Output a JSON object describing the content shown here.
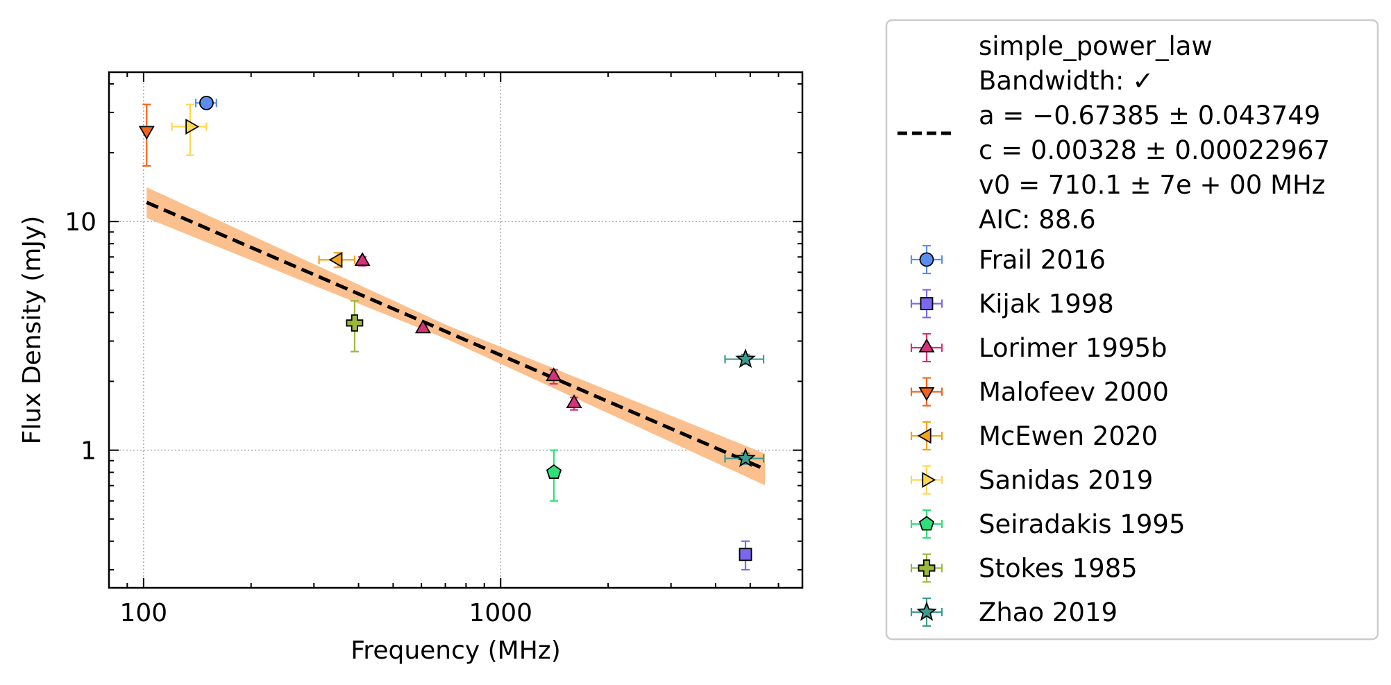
{
  "chart_data": {
    "type": "scatter",
    "xlabel": "Frequency (MHz)",
    "ylabel": "Flux Density (mJy)",
    "x_scale": "log",
    "y_scale": "log",
    "xlim": [
      80,
      7000
    ],
    "ylim": [
      0.25,
      45
    ],
    "x_ticks": [
      {
        "value": 100,
        "label": "100"
      },
      {
        "value": 1000,
        "label": "1000"
      }
    ],
    "y_ticks": [
      {
        "value": 1,
        "label": "1"
      },
      {
        "value": 10,
        "label": "10"
      }
    ],
    "grid": true,
    "legend_placement": "outside-right",
    "fit": {
      "name": "simple_power_law",
      "lines": [
        "simple_power_law",
        "Bandwidth: ✓",
        "a = −0.67385 ± 0.043749",
        "c = 0.00328 ± 0.00022967",
        "v0 = 710.1 ± 7e + 00 MHz",
        "AIC: 88.6"
      ],
      "a": -0.67385,
      "a_err": 0.043749,
      "c": 0.00328,
      "c_err": 0.00022967,
      "v0": 710.1,
      "x_range": [
        102,
        5500
      ],
      "line_color": "#000000",
      "band_color": "#fbc08d"
    },
    "series": [
      {
        "name": "Frail 2016",
        "marker": "circle",
        "color": "#5b8def",
        "edge": "#000000",
        "points": [
          {
            "x": 150,
            "y": 33.0,
            "xerr": 10,
            "yerr": 1.5
          }
        ]
      },
      {
        "name": "Kijak 1998",
        "marker": "square",
        "color": "#7b68ee",
        "edge": "#000000",
        "points": [
          {
            "x": 4850,
            "y": 0.35,
            "xerr": 0,
            "yerr": 0.05
          }
        ]
      },
      {
        "name": "Lorimer 1995b",
        "marker": "triangle-up",
        "color": "#d6317a",
        "edge": "#000000",
        "points": [
          {
            "x": 410,
            "y": 6.7,
            "xerr": 0,
            "yerr": 0.3
          },
          {
            "x": 606,
            "y": 3.4,
            "xerr": 0,
            "yerr": 0.1
          },
          {
            "x": 1408,
            "y": 2.1,
            "xerr": 0,
            "yerr": 0.15
          },
          {
            "x": 1606,
            "y": 1.6,
            "xerr": 0,
            "yerr": 0.1
          }
        ]
      },
      {
        "name": "Malofeev 2000",
        "marker": "triangle-down",
        "color": "#f2641a",
        "edge": "#000000",
        "points": [
          {
            "x": 102,
            "y": 25.0,
            "xerr": 0,
            "yerr": 7.5
          }
        ]
      },
      {
        "name": "McEwen 2020",
        "marker": "triangle-left",
        "color": "#f5a31a",
        "edge": "#000000",
        "points": [
          {
            "x": 350,
            "y": 6.8,
            "xerr": 40,
            "yerr": 0.5
          }
        ]
      },
      {
        "name": "Sanidas 2019",
        "marker": "triangle-right",
        "color": "#ffd84d",
        "edge": "#000000",
        "points": [
          {
            "x": 135,
            "y": 26.0,
            "xerr": 15,
            "yerr": 6.5
          }
        ]
      },
      {
        "name": "Seiradakis 1995",
        "marker": "pentagon",
        "color": "#2ee07a",
        "edge": "#000000",
        "points": [
          {
            "x": 1410,
            "y": 0.8,
            "xerr": 0,
            "yerr": 0.2
          }
        ]
      },
      {
        "name": "Stokes 1985",
        "marker": "plus",
        "color": "#9bb83a",
        "edge": "#000000",
        "points": [
          {
            "x": 390,
            "y": 3.6,
            "xerr": 0,
            "yerr": 0.9
          }
        ]
      },
      {
        "name": "Zhao 2019",
        "marker": "star",
        "color": "#3a9c8e",
        "edge": "#000000",
        "points": [
          {
            "x": 4850,
            "y": 2.5,
            "xerr": 600,
            "yerr": 0.12
          },
          {
            "x": 4850,
            "y": 0.92,
            "xerr": 600,
            "yerr": 0.05
          }
        ]
      }
    ]
  }
}
